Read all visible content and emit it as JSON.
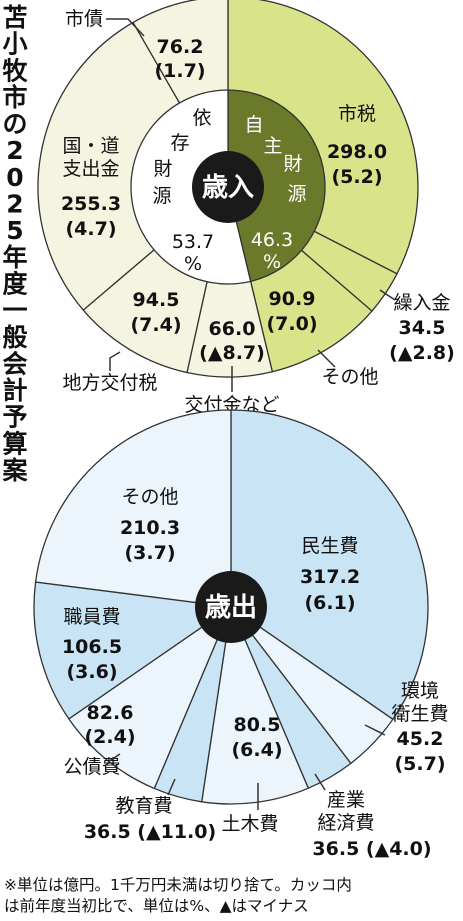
{
  "title": "苫小牧市の2025年度一般会計予算案",
  "chart_data": [
    {
      "type": "pie",
      "title": "歳入",
      "unit": "億円",
      "slices": [
        {
          "name": "市税",
          "value": 298.0,
          "change": "(5.2)",
          "group": "自主財源"
        },
        {
          "name": "繰入金",
          "value": 34.5,
          "change": "(▲2.8)",
          "group": "自主財源"
        },
        {
          "name": "その他",
          "value": 90.9,
          "change": "(7.0)",
          "group": "自主財源"
        },
        {
          "name": "交付金など",
          "value": 66.0,
          "change": "(▲8.7)",
          "group": "依存財源"
        },
        {
          "name": "地方交付税",
          "value": 94.5,
          "change": "(7.4)",
          "group": "依存財源"
        },
        {
          "name": "国・道支出金",
          "value": 255.3,
          "change": "(4.7)",
          "group": "依存財源"
        },
        {
          "name": "市債",
          "value": 76.2,
          "change": "(1.7)",
          "group": "依存財源"
        }
      ],
      "groups": [
        {
          "name": "自主財源",
          "share": "46.3"
        },
        {
          "name": "依存財源",
          "share": "53.7"
        }
      ]
    },
    {
      "type": "pie",
      "title": "歳出",
      "unit": "億円",
      "slices": [
        {
          "name": "民生費",
          "value": 317.2,
          "change": "(6.1)"
        },
        {
          "name": "環境衛生費",
          "value": 45.2,
          "change": "(5.7)"
        },
        {
          "name": "産業経済費",
          "value": 36.5,
          "change": "(▲4.0)"
        },
        {
          "name": "土木費",
          "value": 80.5,
          "change": "(6.4)"
        },
        {
          "name": "教育費",
          "value": 36.5,
          "change": "(▲11.0)"
        },
        {
          "name": "公債費",
          "value": 82.6,
          "change": "(2.4)"
        },
        {
          "name": "職員費",
          "value": 106.5,
          "change": "(3.6)"
        },
        {
          "name": "その他",
          "value": 210.3,
          "change": "(3.7)"
        }
      ]
    }
  ],
  "labels": {
    "pct": "%",
    "rev_shi": "市税",
    "rev_kuri_a": "繰入金",
    "rev_kuri_b": "34.5",
    "rev_kuri_c": "(▲2.8)",
    "rev_other_name": "その他",
    "rev_other_val": "90.9",
    "rev_other_chg": "(7.0)",
    "rev_koufu_name": "交付金など",
    "rev_koufu_val": "66.0",
    "rev_koufu_chg": "(▲8.7)",
    "rev_chihou_name": "地方交付税",
    "rev_chihou_val": "94.5",
    "rev_chihou_chg": "(7.4)",
    "rev_kokudo_a": "国・道",
    "rev_kokudo_b": "支出金",
    "rev_kokudo_val": "255.3",
    "rev_kokudo_chg": "(4.7)",
    "rev_sai_name": "市債",
    "rev_sai_val": "76.2",
    "rev_sai_chg": "(1.7)",
    "rev_shi_val": "298.0",
    "rev_shi_chg": "(5.2)",
    "jishu_chars": [
      "自",
      "主",
      "財",
      "源"
    ],
    "izon_chars": [
      "依",
      "存",
      "財",
      "源"
    ],
    "exp_minsei": "民生費",
    "exp_minsei_val": "317.2",
    "exp_minsei_chg": "(6.1)",
    "exp_kankyo_a": "環境",
    "exp_kankyo_b": "衛生費",
    "exp_kankyo_val": "45.2",
    "exp_kankyo_chg": "(5.7)",
    "exp_sangyo_a": "産業",
    "exp_sangyo_b": "経済費",
    "exp_sangyo_val": "36.5 (▲4.0)",
    "exp_doboku": "土木費",
    "exp_doboku_val": "80.5",
    "exp_doboku_chg": "(6.4)",
    "exp_kyoiku": "教育費",
    "exp_kyoiku_val": "36.5 (▲11.0)",
    "exp_kousai": "公債費",
    "exp_kousai_val": "82.6",
    "exp_kousai_chg": "(2.4)",
    "exp_shokuin": "職員費",
    "exp_shokuin_val": "106.5",
    "exp_shokuin_chg": "(3.6)",
    "exp_other": "その他",
    "exp_other_val": "210.3",
    "exp_other_chg": "(3.7)"
  },
  "footnote": [
    "※単位は億円。1千万円未満は切り捨て。カッコ内",
    "は前年度当初比で、単位は%、▲はマイナス"
  ],
  "colors": {
    "jishu_fill": "#d9e38a",
    "jishu_inner": "#6b7a2a",
    "izon_fill": "#f4f4e0",
    "minsei_fill": "#c9e4f5",
    "exp_light": "#ecf5fc",
    "center": "#1a1a1a",
    "stroke": "#333333"
  }
}
